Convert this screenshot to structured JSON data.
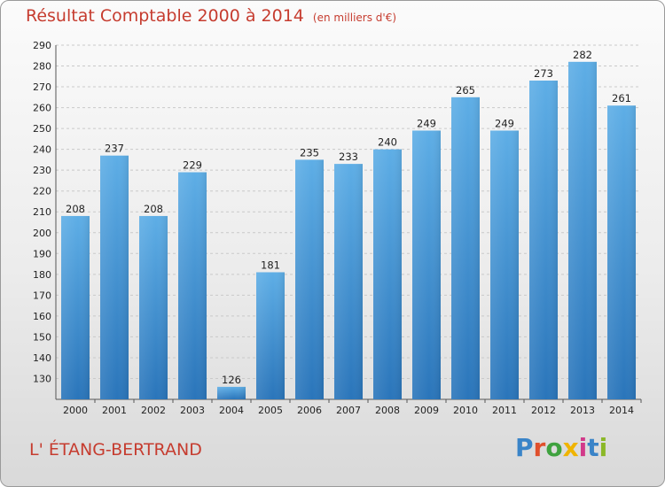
{
  "header": {
    "title": "Résultat Comptable 2000 à 2014",
    "subtitle": "(en milliers d'€)"
  },
  "footer": {
    "place": "L' ÉTANG-BERTRAND",
    "logo": "Proxiti"
  },
  "colors": {
    "bar": "#4f9fdc",
    "bar_dark": "#2c79be",
    "title": "#c63c2f",
    "grid": "#c9c9c9"
  },
  "chart_data": {
    "type": "bar",
    "title": "Résultat Comptable 2000 à 2014",
    "subtitle": "(en milliers d'€)",
    "xlabel": "",
    "ylabel": "",
    "categories": [
      "2000",
      "2001",
      "2002",
      "2003",
      "2004",
      "2005",
      "2006",
      "2007",
      "2008",
      "2009",
      "2010",
      "2011",
      "2012",
      "2013",
      "2014"
    ],
    "values": [
      208,
      237,
      208,
      229,
      126,
      181,
      235,
      233,
      240,
      249,
      265,
      249,
      273,
      282,
      261
    ],
    "ylim": [
      120,
      290
    ],
    "yticks": [
      120,
      130,
      140,
      150,
      160,
      170,
      180,
      190,
      200,
      210,
      220,
      230,
      240,
      250,
      260,
      270,
      280,
      290
    ],
    "grid": true,
    "data_labels": true
  }
}
